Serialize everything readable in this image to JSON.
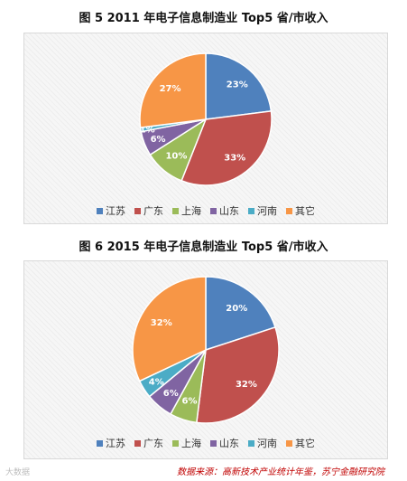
{
  "chart_data": [
    {
      "type": "pie",
      "title": "图 5  2011 年电子信息制造业 Top5 省/市收入",
      "categories": [
        "江苏",
        "广东",
        "上海",
        "山东",
        "河南",
        "其它"
      ],
      "values": [
        23,
        33,
        10,
        6,
        1,
        27
      ],
      "labels": [
        "23%",
        "33%",
        "10%",
        "6%",
        "1%",
        "27%"
      ],
      "colors": [
        "#4F81BD",
        "#C0504D",
        "#9BBB59",
        "#8064A2",
        "#4BACC6",
        "#F79646"
      ],
      "legend": "bottom"
    },
    {
      "type": "pie",
      "title": "图 6  2015 年电子信息制造业 Top5 省/市收入",
      "categories": [
        "江苏",
        "广东",
        "上海",
        "山东",
        "河南",
        "其它"
      ],
      "values": [
        20,
        32,
        6,
        6,
        4,
        32
      ],
      "labels": [
        "20%",
        "32%",
        "6%",
        "6%",
        "4%",
        "32%"
      ],
      "colors": [
        "#4F81BD",
        "#C0504D",
        "#9BBB59",
        "#8064A2",
        "#4BACC6",
        "#F79646"
      ],
      "legend": "bottom"
    }
  ],
  "source": "数据来源：高新技术产业统计年鉴，苏宁金融研究院",
  "watermark": "大数据"
}
